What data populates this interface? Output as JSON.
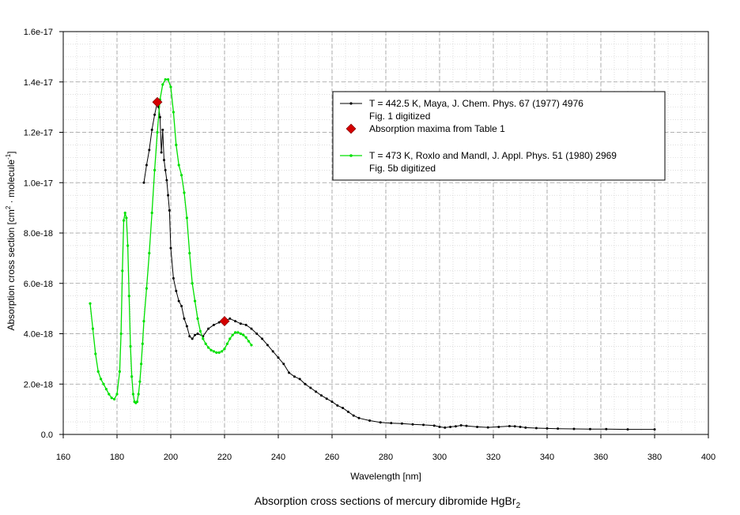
{
  "chart_data": {
    "type": "line",
    "title": "Absorption cross sections of mercury dibromide HgBr",
    "title_subscript": "2",
    "xlabel": "Wavelength [nm]",
    "ylabel": "Absorption cross section [cm",
    "ylabel_sup1": "2",
    "ylabel_mid": " · molecule",
    "ylabel_sup2": "-1",
    "ylabel_end": "]",
    "xlim": [
      160,
      400
    ],
    "ylim": [
      0,
      1.6e-17
    ],
    "x_ticks": [
      160,
      180,
      200,
      220,
      240,
      260,
      280,
      300,
      320,
      340,
      360,
      380,
      400
    ],
    "x_tick_labels": [
      "160",
      "180",
      "200",
      "220",
      "240",
      "260",
      "280",
      "300",
      "320",
      "340",
      "360",
      "380",
      "400"
    ],
    "y_ticks": [
      0,
      2e-18,
      4e-18,
      6e-18,
      8e-18,
      1e-17,
      1.2e-17,
      1.4e-17,
      1.6e-17
    ],
    "y_tick_labels": [
      "0.0",
      "2.0e-18",
      "4.0e-18",
      "6.0e-18",
      "8.0e-18",
      "1.0e-17",
      "1.2e-17",
      "1.4e-17",
      "1.6e-17"
    ],
    "grid": true,
    "legend_position": "top-right",
    "series": [
      {
        "name": "T = 442.5 K, Maya, J. Chem. Phys. 67 (1977) 4976",
        "name_line2": "Fig. 1 digitized",
        "color": "#000000",
        "marker": "dot",
        "x": [
          190,
          191,
          192,
          193,
          194,
          195,
          195.5,
          196,
          196.5,
          197,
          197.5,
          198,
          198.5,
          199,
          199.5,
          200,
          201,
          202,
          203,
          204,
          205,
          206,
          207,
          208,
          209,
          210,
          212,
          214,
          216,
          218,
          220,
          222,
          224,
          226,
          228,
          230,
          232,
          234,
          236,
          238,
          240,
          242,
          244,
          246,
          248,
          250,
          252,
          254,
          256,
          258,
          260,
          262,
          264,
          266,
          268,
          270,
          274,
          278,
          282,
          286,
          290,
          294,
          298,
          300,
          302,
          304,
          306,
          308,
          310,
          314,
          318,
          322,
          326,
          328,
          330,
          332,
          336,
          340,
          344,
          350,
          356,
          362,
          370,
          380
        ],
        "y": [
          1e-17,
          1.07e-17,
          1.13e-17,
          1.21e-17,
          1.27e-17,
          1.32e-17,
          1.3e-17,
          1.26e-17,
          1.12e-17,
          1.21e-17,
          1.09e-17,
          1.05e-17,
          1.01e-17,
          9.5e-18,
          8.9e-18,
          7.4e-18,
          6.2e-18,
          5.7e-18,
          5.3e-18,
          5.1e-18,
          4.6e-18,
          4.3e-18,
          3.9e-18,
          3.8e-18,
          3.95e-18,
          4e-18,
          3.9e-18,
          4.2e-18,
          4.35e-18,
          4.45e-18,
          4.5e-18,
          4.6e-18,
          4.5e-18,
          4.4e-18,
          4.35e-18,
          4.2e-18,
          4e-18,
          3.8e-18,
          3.55e-18,
          3.3e-18,
          3.05e-18,
          2.8e-18,
          2.45e-18,
          2.3e-18,
          2.2e-18,
          2e-18,
          1.85e-18,
          1.7e-18,
          1.55e-18,
          1.42e-18,
          1.3e-18,
          1.15e-18,
          1.05e-18,
          9e-19,
          7.5e-19,
          6.5e-19,
          5.5e-19,
          4.8e-19,
          4.5e-19,
          4.3e-19,
          4e-19,
          3.8e-19,
          3.5e-19,
          3e-19,
          2.7e-19,
          3e-19,
          3.2e-19,
          3.6e-19,
          3.4e-19,
          3e-19,
          2.8e-19,
          3e-19,
          3.3e-19,
          3.2e-19,
          3e-19,
          2.7e-19,
          2.5e-19,
          2.4e-19,
          2.3e-19,
          2.2e-19,
          2.1e-19,
          2.1e-19,
          2e-19,
          2e-19
        ]
      },
      {
        "name": "Absorption maxima from Table 1",
        "color": "#d40000",
        "marker": "diamond",
        "x": [
          195,
          220
        ],
        "y": [
          1.32e-17,
          4.5e-18
        ]
      },
      {
        "name": "T = 473 K, Roxlo and Mandl, J. Appl. Phys. 51 (1980)  2969",
        "name_line2": "Fig. 5b digitized",
        "color": "#00e000",
        "marker": "dot",
        "x": [
          170,
          171,
          172,
          173,
          174,
          175,
          176,
          177,
          178,
          179,
          180,
          181,
          181.5,
          182,
          182.5,
          183,
          183.5,
          184,
          184.5,
          185,
          185.5,
          186,
          186.5,
          187,
          187.5,
          188,
          188.5,
          189,
          189.5,
          190,
          191,
          192,
          193,
          194,
          195,
          196,
          197,
          198,
          199,
          200,
          201,
          202,
          203,
          204,
          205,
          206,
          207,
          208,
          209,
          210,
          211,
          212,
          213,
          214,
          215,
          216,
          217,
          218,
          219,
          220,
          221,
          222,
          223,
          224,
          225,
          226,
          227,
          228,
          229,
          230
        ],
        "y": [
          5.2e-18,
          4.2e-18,
          3.2e-18,
          2.5e-18,
          2.2e-18,
          2e-18,
          1.8e-18,
          1.6e-18,
          1.45e-18,
          1.4e-18,
          1.6e-18,
          2.5e-18,
          4e-18,
          6.5e-18,
          8.5e-18,
          8.8e-18,
          8.6e-18,
          7.5e-18,
          5.5e-18,
          3.5e-18,
          2.3e-18,
          1.6e-18,
          1.3e-18,
          1.25e-18,
          1.3e-18,
          1.6e-18,
          2.1e-18,
          2.8e-18,
          3.6e-18,
          4.5e-18,
          5.8e-18,
          7.2e-18,
          8.8e-18,
          1.05e-17,
          1.2e-17,
          1.33e-17,
          1.39e-17,
          1.41e-17,
          1.41e-17,
          1.38e-17,
          1.28e-17,
          1.15e-17,
          1.07e-17,
          1.03e-17,
          9.6e-18,
          8.6e-18,
          7.2e-18,
          6e-18,
          5.3e-18,
          4.6e-18,
          4.1e-18,
          3.8e-18,
          3.6e-18,
          3.45e-18,
          3.35e-18,
          3.3e-18,
          3.25e-18,
          3.25e-18,
          3.3e-18,
          3.4e-18,
          3.6e-18,
          3.8e-18,
          3.95e-18,
          4.05e-18,
          4.05e-18,
          4e-18,
          3.95e-18,
          3.85e-18,
          3.7e-18,
          3.55e-18
        ]
      }
    ]
  }
}
